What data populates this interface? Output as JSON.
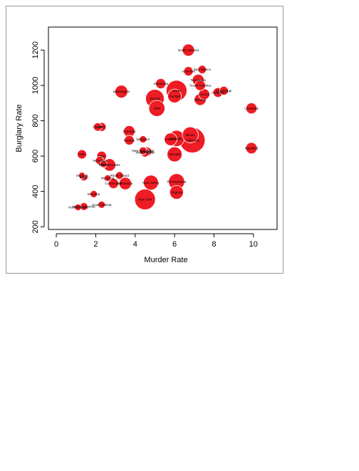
{
  "chart_data": {
    "type": "scatter",
    "title": "",
    "xlabel": "Murder Rate",
    "ylabel": "Burglary Rate",
    "xlim": [
      -0.4,
      11.2
    ],
    "ylim": [
      185,
      1330
    ],
    "x_ticks": [
      0,
      2,
      4,
      6,
      8,
      10
    ],
    "y_ticks": [
      200,
      400,
      600,
      800,
      1000,
      1200
    ],
    "grid": false,
    "legend": "none",
    "bubble_color": "#ee1c24",
    "bubble_border_color": "#ffffff",
    "size_encoding": "bubble area",
    "points": [
      {
        "label": "North Carolina",
        "x": 6.7,
        "y": 1200,
        "size": 1.7
      },
      {
        "label": "Arkansas",
        "x": 6.7,
        "y": 1080,
        "size": 1.0
      },
      {
        "label": "New Mexico",
        "x": 7.4,
        "y": 1090,
        "size": 0.8
      },
      {
        "label": "Oklahoma",
        "x": 5.3,
        "y": 1010,
        "size": 1.2
      },
      {
        "label": "Tennessee",
        "x": 7.2,
        "y": 1030,
        "size": 1.6
      },
      {
        "label": "South Carolina",
        "x": 7.3,
        "y": 1000,
        "size": 1.3
      },
      {
        "label": "Alabama",
        "x": 8.2,
        "y": 960,
        "size": 1.1
      },
      {
        "label": "Mississippi",
        "x": 8.5,
        "y": 970,
        "size": 0.9
      },
      {
        "label": "Arizona",
        "x": 7.5,
        "y": 950,
        "size": 1.4
      },
      {
        "label": "Missouri",
        "x": 7.3,
        "y": 920,
        "size": 1.6
      },
      {
        "label": "Washington",
        "x": 3.3,
        "y": 965,
        "size": 1.9
      },
      {
        "label": "Texas",
        "x": 6.1,
        "y": 970,
        "size": 5.0
      },
      {
        "label": "Florida",
        "x": 5.0,
        "y": 925,
        "size": 4.0
      },
      {
        "label": "Georgia",
        "x": 6.0,
        "y": 940,
        "size": 2.2
      },
      {
        "label": "Ohio",
        "x": 5.1,
        "y": 870,
        "size": 3.0
      },
      {
        "label": "Louisiana",
        "x": 9.9,
        "y": 870,
        "size": 1.4
      },
      {
        "label": "Hawaii",
        "x": 2.1,
        "y": 765,
        "size": 0.8
      },
      {
        "label": "Idaho",
        "x": 2.3,
        "y": 765,
        "size": 0.9
      },
      {
        "label": "Colorado",
        "x": 3.7,
        "y": 740,
        "size": 1.5
      },
      {
        "label": "Kansas",
        "x": 3.7,
        "y": 690,
        "size": 1.1
      },
      {
        "label": "Delaware",
        "x": 4.4,
        "y": 695,
        "size": 0.6
      },
      {
        "label": "Indiana",
        "x": 5.8,
        "y": 695,
        "size": 1.9
      },
      {
        "label": "Michigan",
        "x": 6.1,
        "y": 700,
        "size": 3.0
      },
      {
        "label": "Illinois",
        "x": 6.8,
        "y": 720,
        "size": 3.0
      },
      {
        "label": "California",
        "x": 6.9,
        "y": 690,
        "size": 7.5
      },
      {
        "label": "New York State",
        "x": 4.4,
        "y": 630,
        "size": 0.7
      },
      {
        "label": "West Virginia",
        "x": 4.5,
        "y": 620,
        "size": 0.9
      },
      {
        "label": "Kentucky",
        "x": 4.6,
        "y": 625,
        "size": 1.0
      },
      {
        "label": "Maryland",
        "x": 9.9,
        "y": 645,
        "size": 1.5
      },
      {
        "label": "Utah",
        "x": 1.3,
        "y": 610,
        "size": 1.0
      },
      {
        "label": "Iowa",
        "x": 2.3,
        "y": 600,
        "size": 1.1
      },
      {
        "label": "Nebraska",
        "x": 2.2,
        "y": 575,
        "size": 0.8
      },
      {
        "label": "Alaska",
        "x": 2.4,
        "y": 555,
        "size": 0.6
      },
      {
        "label": "Massachusetts",
        "x": 2.7,
        "y": 550,
        "size": 1.8
      },
      {
        "label": "Nevada",
        "x": 6.0,
        "y": 610,
        "size": 2.6
      },
      {
        "label": "Vermont",
        "x": 1.3,
        "y": 490,
        "size": 0.5
      },
      {
        "label": "Maine",
        "x": 1.4,
        "y": 480,
        "size": 0.6
      },
      {
        "label": "Rhode Island",
        "x": 3.2,
        "y": 490,
        "size": 0.7
      },
      {
        "label": "Wyoming",
        "x": 2.6,
        "y": 475,
        "size": 0.5
      },
      {
        "label": "Connecticut",
        "x": 2.9,
        "y": 445,
        "size": 1.2
      },
      {
        "label": "Minnesota",
        "x": 3.5,
        "y": 445,
        "size": 1.8
      },
      {
        "label": "New Jersey",
        "x": 4.8,
        "y": 450,
        "size": 2.6
      },
      {
        "label": "Pennsylvania",
        "x": 6.1,
        "y": 455,
        "size": 3.0
      },
      {
        "label": "Virginia",
        "x": 6.1,
        "y": 395,
        "size": 2.2
      },
      {
        "label": "Montana",
        "x": 1.9,
        "y": 385,
        "size": 0.6
      },
      {
        "label": "South Dakota",
        "x": 2.3,
        "y": 325,
        "size": 0.6
      },
      {
        "label": "New Hampshire",
        "x": 1.4,
        "y": 315,
        "size": 0.7
      },
      {
        "label": "North Dakota",
        "x": 1.1,
        "y": 310,
        "size": 0.5
      },
      {
        "label": "New York",
        "x": 4.5,
        "y": 355,
        "size": 5.0
      }
    ],
    "label_abbreviations": {
      "Connecticut": "Connecticut",
      "Minnesota": "Minnesota"
    }
  }
}
